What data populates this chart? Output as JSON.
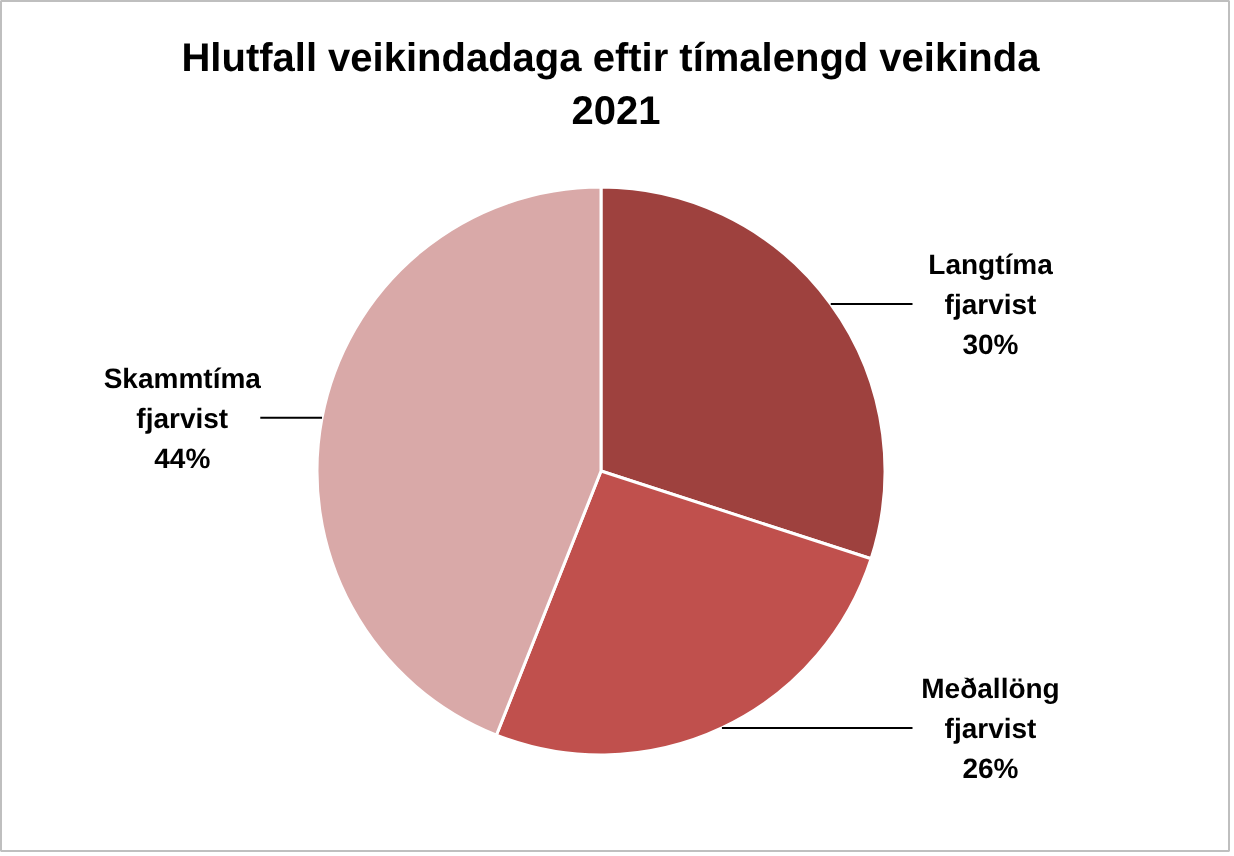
{
  "chart_data": {
    "type": "pie",
    "title": "Hlutfall veikindadaga eftir  tímalengd veikinda 2021",
    "categories": [
      "Langtíma fjarvist",
      "Meðallöng fjarvist",
      "Skammtíma fjarvist"
    ],
    "values": [
      30,
      26,
      44
    ],
    "colors": [
      "#9e413e",
      "#c0504d",
      "#d9a9a8"
    ],
    "value_labels": [
      "30%",
      "26%",
      "44%"
    ]
  }
}
